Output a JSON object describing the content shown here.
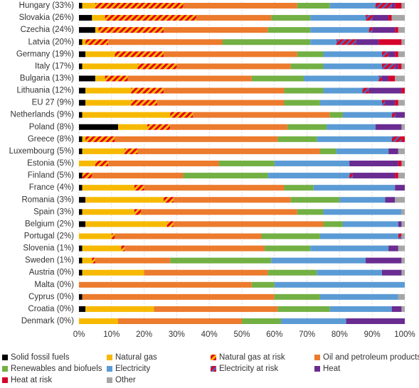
{
  "chart_data": {
    "type": "stacked-bar-horizontal",
    "categories": [
      "Hungary (33%)",
      "Slovakia (26%)",
      "Czechia (24%)",
      "Latvia (20%)",
      "Germany (19%)",
      "Italy (17%)",
      "Bulgaria (13%)",
      "Lithuania (12%)",
      "EU 27 (9%)",
      "Netherlands (9%)",
      "Poland (8%)",
      "Greece (8%)",
      "Luxembourg (5%)",
      "Estonia (5%)",
      "Finland (5%)",
      "France (4%)",
      "Romania (3%)",
      "Spain (3%)",
      "Belgium (2%)",
      "Portugal (2%)",
      "Slovenia (1%)",
      "Sweden (1%)",
      "Austria (0%)",
      "Malta (0%)",
      "Cyprus (0%)",
      "Croatia (0%)",
      "Denmark (0%)"
    ],
    "series": [
      {
        "name": "Solid fossil fuels",
        "color": "#000000",
        "values": [
          1,
          4,
          5,
          1,
          2,
          1,
          5,
          2,
          2,
          1,
          12,
          1,
          1,
          0,
          1,
          1,
          2,
          1,
          2,
          0,
          1,
          1,
          1,
          0,
          1,
          2,
          0
        ]
      },
      {
        "name": "Natural gas",
        "color": "#f7b900",
        "values": [
          4,
          4,
          1,
          1,
          9,
          17,
          3,
          14,
          14,
          27,
          9,
          1,
          13,
          5,
          0,
          16,
          24,
          16,
          25,
          10,
          12,
          3,
          19,
          0,
          0,
          21,
          12
        ]
      },
      {
        "name": "Natural gas at risk",
        "color": "#f7b900",
        "hatch": "#e3001b",
        "values": [
          27,
          28,
          20,
          7,
          15,
          12,
          7,
          10,
          8,
          7,
          7,
          9,
          4,
          4,
          3,
          3,
          3,
          2,
          2,
          1,
          1,
          1,
          0,
          0,
          0,
          0,
          0
        ]
      },
      {
        "name": "Oil and petroleum products",
        "color": "#ec7b2d",
        "values": [
          35,
          23,
          32,
          35,
          41,
          35,
          38,
          37,
          39,
          42,
          36,
          50,
          56,
          34,
          28,
          43,
          36,
          48,
          46,
          45,
          43,
          23,
          38,
          53,
          59,
          38,
          38
        ]
      },
      {
        "name": "Renewables and biofuels",
        "color": "#72b043",
        "values": [
          10,
          12,
          13,
          27,
          8,
          10,
          16,
          12,
          11,
          4,
          12,
          12,
          5,
          17,
          26,
          9,
          15,
          8,
          6,
          18,
          14,
          31,
          15,
          7,
          14,
          16,
          12
        ]
      },
      {
        "name": "Electricity",
        "color": "#5b9bd5",
        "values": [
          14,
          17,
          18,
          8,
          18,
          18,
          23,
          12,
          19,
          15,
          15,
          23,
          16,
          23,
          25,
          25,
          14,
          24,
          17,
          24,
          24,
          29,
          20,
          40,
          24,
          19,
          20
        ]
      },
      {
        "name": "Electricity at risk",
        "color": "#5b5fb0",
        "hatch": "#e3001b",
        "values": [
          5,
          2,
          1,
          6,
          2,
          4,
          1,
          2,
          1,
          1,
          0,
          3,
          0,
          0,
          1,
          0,
          0,
          0,
          0,
          1,
          0,
          0,
          0,
          0,
          0,
          0,
          0
        ]
      },
      {
        "name": "Heat",
        "color": "#6a2c91",
        "values": [
          1,
          5,
          7,
          7,
          2,
          1,
          2,
          10,
          3,
          3,
          8,
          0,
          3,
          15,
          13,
          3,
          3,
          0,
          1,
          0,
          3,
          11,
          6,
          0,
          0,
          3,
          18
        ]
      },
      {
        "name": "Heat at risk",
        "color": "#d6002a",
        "values": [
          2,
          1,
          1,
          7,
          1,
          1,
          2,
          1,
          1,
          0,
          0,
          1,
          0,
          1,
          1,
          0,
          0,
          0,
          0,
          0,
          0,
          0,
          0,
          0,
          0,
          0,
          0
        ]
      },
      {
        "name": "Other",
        "color": "#a6a6a6",
        "values": [
          1,
          4,
          2,
          1,
          2,
          1,
          3,
          0,
          2,
          0,
          1,
          0,
          2,
          1,
          2,
          0,
          3,
          1,
          1,
          1,
          2,
          1,
          1,
          0,
          2,
          1,
          0
        ]
      }
    ],
    "xlim": [
      0,
      100
    ],
    "xticks": [
      {
        "value": 0,
        "label": "0%"
      },
      {
        "value": 10,
        "label": "10%"
      },
      {
        "value": 20,
        "label": "20%"
      },
      {
        "value": 30,
        "label": "30%"
      },
      {
        "value": 40,
        "label": "40%"
      },
      {
        "value": 50,
        "label": "50%"
      },
      {
        "value": 60,
        "label": "60%"
      },
      {
        "value": 70,
        "label": "70%"
      },
      {
        "value": 80,
        "label": "80%"
      },
      {
        "value": 90,
        "label": "90%"
      },
      {
        "value": 100,
        "label": "100%"
      }
    ],
    "grid": true
  }
}
